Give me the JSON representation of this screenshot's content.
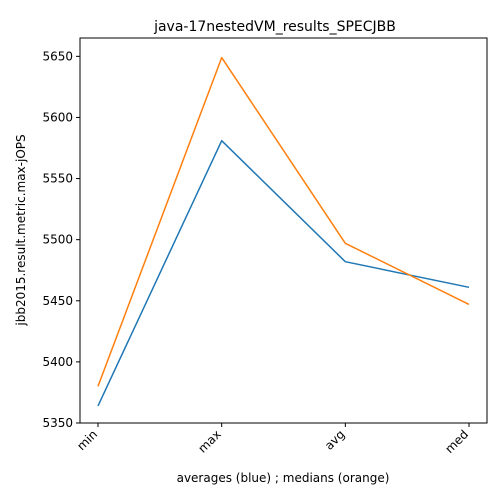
{
  "chart_data": {
    "type": "line",
    "title": "java-17nestedVM_results_SPECJBB",
    "xlabel": "averages (blue) ; medians (orange)",
    "ylabel": "jbb2015.result.metric.max-jOPS",
    "categories": [
      "min",
      "max",
      "avg",
      "med"
    ],
    "ylim": [
      5350,
      5665
    ],
    "yticks": [
      5350,
      5400,
      5450,
      5500,
      5550,
      5600,
      5650
    ],
    "series": [
      {
        "name": "averages",
        "color": "#1f77b4",
        "values": [
          5364,
          5581,
          5482,
          5461
        ]
      },
      {
        "name": "medians",
        "color": "#ff7f0e",
        "values": [
          5380,
          5649,
          5497,
          5447
        ]
      }
    ]
  }
}
